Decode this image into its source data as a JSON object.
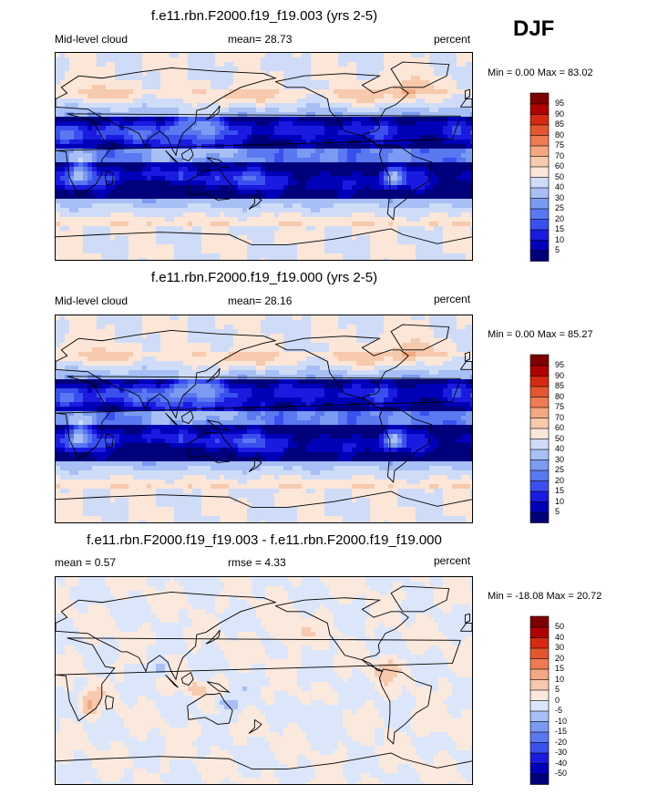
{
  "season": "DJF",
  "panels": [
    {
      "title": "f.e11.rbn.F2000.f19_f19.003 (yrs 2-5)",
      "left_label": "Mid-level cloud",
      "center_label": "mean=  28.73",
      "right_label": "percent",
      "minmax": "Min =   0.00 Max =  83.02"
    },
    {
      "title": "f.e11.rbn.F2000.f19_f19.000 (yrs 2-5)",
      "left_label": "Mid-level cloud",
      "center_label": "mean=  28.16",
      "right_label": "percent",
      "minmax": "Min =   0.00 Max =  85.27"
    },
    {
      "title": "f.e11.rbn.F2000.f19_f19.003 - f.e11.rbn.F2000.f19_f19.000",
      "left_label": "mean =   0.57",
      "center_label": "rmse =   4.33",
      "right_label": "percent",
      "minmax": "Min = -18.08 Max =  20.72"
    }
  ],
  "chart_data": [
    {
      "type": "heatmap",
      "title": "f.e11.rbn.F2000.f19_f19.003 (yrs 2-5)",
      "variable": "Mid-level cloud",
      "units": "percent",
      "mean": 28.73,
      "min": 0.0,
      "max": 83.02,
      "colorbar_levels": [
        5,
        10,
        15,
        20,
        25,
        30,
        40,
        50,
        60,
        70,
        75,
        80,
        85,
        90,
        95
      ],
      "colorbar_colors": [
        "#00007a",
        "#0000b8",
        "#1a1ae0",
        "#3a50ee",
        "#5a78f0",
        "#7b9af2",
        "#a7bff5",
        "#cfdcf8",
        "#fbe6d8",
        "#f7c9ad",
        "#f4a881",
        "#ee7b52",
        "#e45630",
        "#d62a12",
        "#b00000",
        "#7e0000"
      ]
    },
    {
      "type": "heatmap",
      "title": "f.e11.rbn.F2000.f19_f19.000 (yrs 2-5)",
      "variable": "Mid-level cloud",
      "units": "percent",
      "mean": 28.16,
      "min": 0.0,
      "max": 85.27,
      "colorbar_levels": [
        5,
        10,
        15,
        20,
        25,
        30,
        40,
        50,
        60,
        70,
        75,
        80,
        85,
        90,
        95
      ],
      "colorbar_colors": [
        "#00007a",
        "#0000b8",
        "#1a1ae0",
        "#3a50ee",
        "#5a78f0",
        "#7b9af2",
        "#a7bff5",
        "#cfdcf8",
        "#fbe6d8",
        "#f7c9ad",
        "#f4a881",
        "#ee7b52",
        "#e45630",
        "#d62a12",
        "#b00000",
        "#7e0000"
      ]
    },
    {
      "type": "heatmap",
      "title": "f.e11.rbn.F2000.f19_f19.003 - f.e11.rbn.F2000.f19_f19.000",
      "units": "percent",
      "mean": 0.57,
      "rmse": 4.33,
      "min": -18.08,
      "max": 20.72,
      "colorbar_levels": [
        -50,
        -40,
        -30,
        -20,
        -15,
        -10,
        -5,
        0,
        5,
        10,
        15,
        20,
        30,
        40,
        50
      ],
      "colorbar_colors": [
        "#00007a",
        "#0000b8",
        "#1a1ae0",
        "#3a50ee",
        "#5a78f0",
        "#7b9af2",
        "#a7bff5",
        "#dbe6fa",
        "#fbe9de",
        "#f7c9ad",
        "#f4a881",
        "#ee7b52",
        "#e45630",
        "#d62a12",
        "#b00000",
        "#7e0000"
      ]
    }
  ]
}
